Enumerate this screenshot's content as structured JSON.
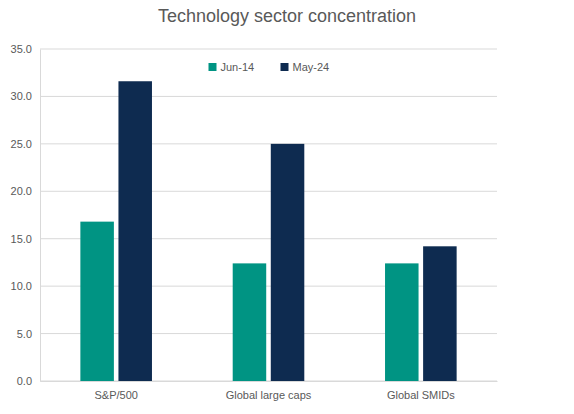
{
  "chart_data": {
    "type": "bar",
    "title": "Technology sector concentration",
    "categories": [
      "S&P/500",
      "Global large caps",
      "Global SMIDs"
    ],
    "series": [
      {
        "name": "Jun-14",
        "color": "#009483",
        "values": [
          16.8,
          12.4,
          12.4
        ]
      },
      {
        "name": "May-24",
        "color": "#0e2b50",
        "values": [
          31.6,
          25.0,
          14.2
        ]
      }
    ],
    "ylim": [
      0,
      35
    ],
    "yticks": [
      {
        "value": 0,
        "label": "0.0"
      },
      {
        "value": 5,
        "label": "5.0"
      },
      {
        "value": 10,
        "label": "10.0"
      },
      {
        "value": 15,
        "label": "15.0"
      },
      {
        "value": 20,
        "label": "20.0"
      },
      {
        "value": 25,
        "label": "25.0"
      },
      {
        "value": 30,
        "label": "30.0"
      },
      {
        "value": 35,
        "label": "35.0"
      }
    ],
    "grid": true,
    "legend": "top"
  }
}
